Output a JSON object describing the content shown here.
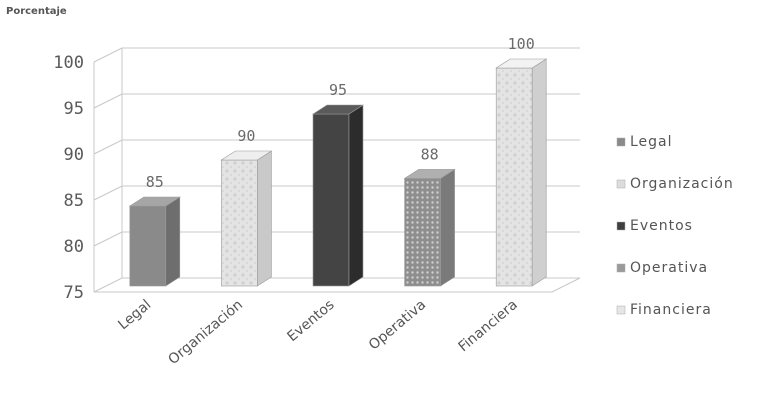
{
  "chart_data": {
    "type": "bar",
    "ylabel": "Porcentaje",
    "categories": [
      "Legal",
      "Organización",
      "Eventos",
      "Operativa",
      "Financiera"
    ],
    "values": [
      85,
      90,
      95,
      88,
      100
    ],
    "data_labels": [
      "85",
      "90",
      "95",
      "88",
      "100"
    ],
    "yticks": [
      "75",
      "80",
      "85",
      "90",
      "95",
      "100"
    ],
    "ylim": [
      75,
      100
    ],
    "grid": true,
    "legend_position": "right",
    "legend": [
      "Legal",
      "Organización",
      "Eventos",
      "Operativa",
      "Financiera"
    ],
    "colors": [
      "#8c8c8c",
      "#e2e2e2",
      "#3f3f3f",
      "#9a9a9a",
      "#e6e6e6"
    ]
  }
}
